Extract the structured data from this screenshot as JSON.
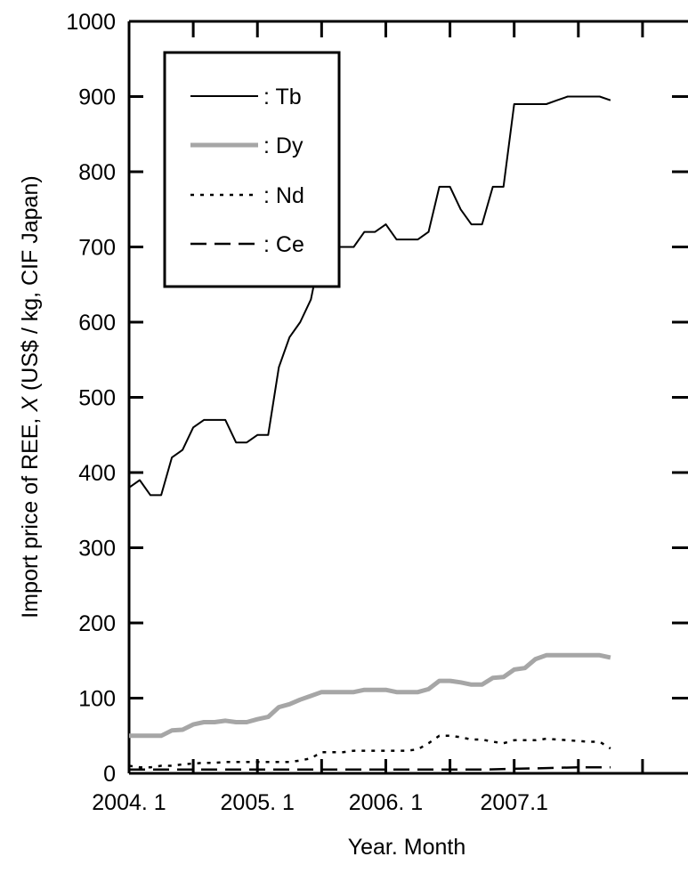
{
  "chart_data": {
    "type": "line",
    "xlabel": "Year. Month",
    "ylabel_prefix": "Import price of REE, ",
    "ylabel_var": "X",
    "ylabel_suffix": " (US$ / kg, CIF Japan)",
    "x_ticks": [
      {
        "month": 0,
        "label": "2004. 1"
      },
      {
        "month": 12,
        "label": "2005. 1"
      },
      {
        "month": 24,
        "label": "2006. 1"
      },
      {
        "month": 36,
        "label": "2007.1"
      }
    ],
    "xlim": [
      "2004-01",
      "2008-05"
    ],
    "ylim": [
      0,
      1000
    ],
    "y_ticks": [
      0,
      100,
      200,
      300,
      400,
      500,
      600,
      700,
      800,
      900,
      1000
    ],
    "grid": false,
    "legend": {
      "position": "top-left",
      "entries": [
        {
          "label": ": Tb",
          "series": "Tb"
        },
        {
          "label": ": Dy",
          "series": "Dy"
        },
        {
          "label": ": Nd",
          "series": "Nd"
        },
        {
          "label": ": Ce",
          "series": "Ce"
        }
      ]
    },
    "series": [
      {
        "name": "Tb",
        "color": "#000000",
        "style": "solid",
        "points": [
          [
            "2004-01",
            380
          ],
          [
            "2004-02",
            390
          ],
          [
            "2004-03",
            370
          ],
          [
            "2004-04",
            370
          ],
          [
            "2004-05",
            420
          ],
          [
            "2004-06",
            430
          ],
          [
            "2004-07",
            460
          ],
          [
            "2004-08",
            470
          ],
          [
            "2004-09",
            470
          ],
          [
            "2004-10",
            470
          ],
          [
            "2004-11",
            440
          ],
          [
            "2004-12",
            440
          ],
          [
            "2005-01",
            450
          ],
          [
            "2005-02",
            450
          ],
          [
            "2005-03",
            540
          ],
          [
            "2005-04",
            580
          ],
          [
            "2005-05",
            600
          ],
          [
            "2005-06",
            630
          ],
          [
            "2005-07",
            700
          ],
          [
            "2005-08",
            700
          ],
          [
            "2005-09",
            700
          ],
          [
            "2005-10",
            700
          ],
          [
            "2005-11",
            720
          ],
          [
            "2005-12",
            720
          ],
          [
            "2006-01",
            730
          ],
          [
            "2006-02",
            710
          ],
          [
            "2006-03",
            710
          ],
          [
            "2006-04",
            710
          ],
          [
            "2006-05",
            720
          ],
          [
            "2006-06",
            780
          ],
          [
            "2006-07",
            780
          ],
          [
            "2006-08",
            750
          ],
          [
            "2006-09",
            730
          ],
          [
            "2006-10",
            730
          ],
          [
            "2006-11",
            780
          ],
          [
            "2006-12",
            780
          ],
          [
            "2007-01",
            890
          ],
          [
            "2007-02",
            890
          ],
          [
            "2007-03",
            890
          ],
          [
            "2007-04",
            890
          ],
          [
            "2007-05",
            895
          ],
          [
            "2007-06",
            900
          ],
          [
            "2007-07",
            900
          ],
          [
            "2007-08",
            900
          ],
          [
            "2007-09",
            900
          ],
          [
            "2007-10",
            895
          ]
        ]
      },
      {
        "name": "Dy",
        "color": "#a6a6a6",
        "style": "thick-gray",
        "points": [
          [
            "2004-01",
            50
          ],
          [
            "2004-02",
            50
          ],
          [
            "2004-03",
            50
          ],
          [
            "2004-04",
            50
          ],
          [
            "2004-05",
            57
          ],
          [
            "2004-06",
            58
          ],
          [
            "2004-07",
            65
          ],
          [
            "2004-08",
            68
          ],
          [
            "2004-09",
            68
          ],
          [
            "2004-10",
            70
          ],
          [
            "2004-11",
            68
          ],
          [
            "2004-12",
            68
          ],
          [
            "2005-01",
            72
          ],
          [
            "2005-02",
            75
          ],
          [
            "2005-03",
            88
          ],
          [
            "2005-04",
            92
          ],
          [
            "2005-05",
            98
          ],
          [
            "2005-06",
            103
          ],
          [
            "2005-07",
            108
          ],
          [
            "2005-08",
            108
          ],
          [
            "2005-09",
            108
          ],
          [
            "2005-10",
            108
          ],
          [
            "2005-11",
            111
          ],
          [
            "2005-12",
            111
          ],
          [
            "2006-01",
            111
          ],
          [
            "2006-02",
            108
          ],
          [
            "2006-03",
            108
          ],
          [
            "2006-04",
            108
          ],
          [
            "2006-05",
            112
          ],
          [
            "2006-06",
            123
          ],
          [
            "2006-07",
            123
          ],
          [
            "2006-08",
            121
          ],
          [
            "2006-09",
            118
          ],
          [
            "2006-10",
            118
          ],
          [
            "2006-11",
            127
          ],
          [
            "2006-12",
            128
          ],
          [
            "2007-01",
            138
          ],
          [
            "2007-02",
            140
          ],
          [
            "2007-03",
            152
          ],
          [
            "2007-04",
            157
          ],
          [
            "2007-05",
            157
          ],
          [
            "2007-06",
            157
          ],
          [
            "2007-07",
            157
          ],
          [
            "2007-08",
            157
          ],
          [
            "2007-09",
            157
          ],
          [
            "2007-10",
            154
          ]
        ]
      },
      {
        "name": "Nd",
        "color": "#000000",
        "style": "dotted",
        "points": [
          [
            "2004-01",
            10
          ],
          [
            "2004-02",
            8
          ],
          [
            "2004-03",
            8
          ],
          [
            "2004-04",
            10
          ],
          [
            "2004-05",
            10
          ],
          [
            "2004-06",
            12
          ],
          [
            "2004-07",
            13
          ],
          [
            "2004-08",
            14
          ],
          [
            "2004-09",
            14
          ],
          [
            "2004-10",
            15
          ],
          [
            "2004-11",
            15
          ],
          [
            "2004-12",
            15
          ],
          [
            "2005-01",
            15
          ],
          [
            "2005-02",
            15
          ],
          [
            "2005-03",
            15
          ],
          [
            "2005-04",
            15
          ],
          [
            "2005-05",
            17
          ],
          [
            "2005-06",
            20
          ],
          [
            "2005-07",
            28
          ],
          [
            "2005-08",
            28
          ],
          [
            "2005-09",
            28
          ],
          [
            "2005-10",
            30
          ],
          [
            "2005-11",
            30
          ],
          [
            "2005-12",
            30
          ],
          [
            "2006-01",
            30
          ],
          [
            "2006-02",
            30
          ],
          [
            "2006-03",
            30
          ],
          [
            "2006-04",
            32
          ],
          [
            "2006-05",
            40
          ],
          [
            "2006-06",
            50
          ],
          [
            "2006-07",
            50
          ],
          [
            "2006-08",
            48
          ],
          [
            "2006-09",
            45
          ],
          [
            "2006-10",
            45
          ],
          [
            "2006-11",
            42
          ],
          [
            "2006-12",
            40
          ],
          [
            "2007-01",
            44
          ],
          [
            "2007-02",
            44
          ],
          [
            "2007-03",
            44
          ],
          [
            "2007-04",
            46
          ],
          [
            "2007-05",
            45
          ],
          [
            "2007-06",
            44
          ],
          [
            "2007-07",
            43
          ],
          [
            "2007-08",
            42
          ],
          [
            "2007-09",
            42
          ],
          [
            "2007-10",
            33
          ]
        ]
      },
      {
        "name": "Ce",
        "color": "#000000",
        "style": "dashed",
        "points": [
          [
            "2004-01",
            5
          ],
          [
            "2004-04",
            5
          ],
          [
            "2004-07",
            5
          ],
          [
            "2004-10",
            5
          ],
          [
            "2005-01",
            5
          ],
          [
            "2005-04",
            5
          ],
          [
            "2005-07",
            5
          ],
          [
            "2005-10",
            5
          ],
          [
            "2006-01",
            5
          ],
          [
            "2006-04",
            5
          ],
          [
            "2006-07",
            5
          ],
          [
            "2006-10",
            5
          ],
          [
            "2007-01",
            6
          ],
          [
            "2007-04",
            7
          ],
          [
            "2007-07",
            8
          ],
          [
            "2007-10",
            8
          ]
        ]
      }
    ]
  }
}
